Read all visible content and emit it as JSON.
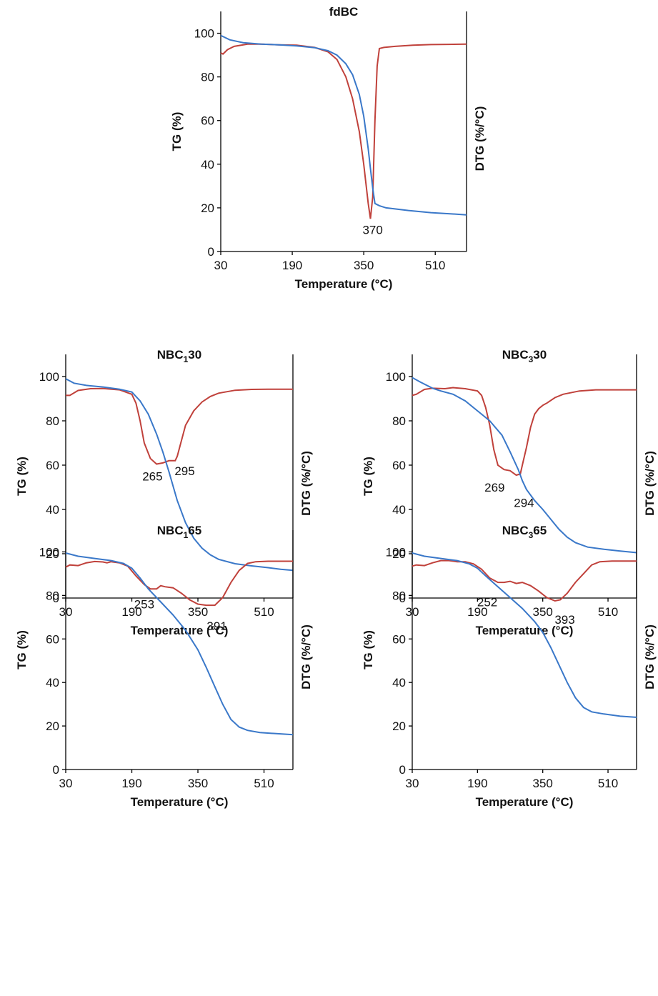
{
  "chart_data": [
    {
      "type": "line",
      "title": "fdBC",
      "title_parts": [
        "fdBC",
        "",
        ""
      ],
      "xlabel": "Temperature (°C)",
      "ylabel": "TG (%)",
      "y2label": "DTG (%/°C)",
      "xlim": [
        30,
        580
      ],
      "ylim": [
        0,
        110
      ],
      "xticks": [
        30,
        190,
        350,
        510
      ],
      "yticks": [
        0,
        20,
        40,
        60,
        80,
        100
      ],
      "series": [
        {
          "color": "#3a78c9",
          "x": [
            30,
            50,
            80,
            120,
            160,
            200,
            240,
            270,
            290,
            310,
            325,
            340,
            350,
            360,
            365,
            370,
            375,
            385,
            400,
            450,
            500,
            550,
            580
          ],
          "y": [
            99,
            97,
            95.7,
            95,
            94.7,
            94.2,
            93.4,
            92,
            90,
            86,
            81,
            72,
            62,
            47,
            38,
            29,
            22,
            21,
            20,
            18.8,
            17.8,
            17.2,
            16.8
          ]
        },
        {
          "color": "#c0413b",
          "x": [
            30,
            35,
            45,
            60,
            90,
            120,
            160,
            200,
            240,
            270,
            290,
            310,
            325,
            340,
            350,
            360,
            365,
            370,
            375,
            380,
            385,
            395,
            420,
            460,
            500,
            540,
            580
          ],
          "y": [
            91,
            90.5,
            92.5,
            94,
            95,
            95,
            94.7,
            94.5,
            93.5,
            91.5,
            88,
            80,
            70,
            55,
            40,
            22,
            15,
            25,
            60,
            85,
            93,
            93.5,
            94,
            94.5,
            94.8,
            94.9,
            95
          ]
        }
      ],
      "annotations": [
        {
          "text": "370",
          "x": 370,
          "y": 10
        }
      ]
    },
    {
      "type": "line",
      "title": "NBC130",
      "title_parts": [
        "NBC",
        "1",
        "30"
      ],
      "xlabel": "Temperature (°C)",
      "ylabel": "TG (%)",
      "y2label": "DTG (%/°C)",
      "xlim": [
        30,
        580
      ],
      "ylim": [
        0,
        110
      ],
      "xticks": [
        30,
        190,
        350,
        510
      ],
      "yticks": [
        0,
        20,
        40,
        60,
        80,
        100
      ],
      "series": [
        {
          "color": "#3a78c9",
          "x": [
            30,
            50,
            80,
            120,
            160,
            190,
            210,
            230,
            250,
            265,
            280,
            300,
            320,
            340,
            360,
            380,
            400,
            440,
            480,
            520,
            550,
            580
          ],
          "y": [
            99,
            97,
            96,
            95.3,
            94.3,
            93,
            89,
            83,
            74,
            66,
            57,
            44,
            34,
            27,
            22.5,
            19.5,
            17.5,
            15.5,
            14.5,
            13.7,
            13,
            12.5
          ]
        },
        {
          "color": "#c0413b",
          "x": [
            30,
            40,
            60,
            90,
            120,
            160,
            190,
            200,
            210,
            220,
            235,
            250,
            265,
            280,
            295,
            300,
            310,
            320,
            340,
            360,
            380,
            400,
            440,
            480,
            520,
            580
          ],
          "y": [
            91.5,
            91.5,
            93.7,
            94.5,
            94.6,
            94,
            92,
            88,
            80,
            70,
            63,
            60.5,
            61,
            62,
            62,
            64,
            71,
            78,
            84.5,
            88.5,
            91,
            92.5,
            93.8,
            94.2,
            94.3,
            94.3
          ]
        }
      ],
      "annotations": [
        {
          "text": "265",
          "x": 240,
          "y": 55
        },
        {
          "text": "295",
          "x": 318,
          "y": 57.5
        }
      ]
    },
    {
      "type": "line",
      "title": "NBC330",
      "title_parts": [
        "NBC",
        "3",
        "30"
      ],
      "xlabel": "Temperature (°C)",
      "ylabel": "TG (%)",
      "y2label": "DTG (%/°C)",
      "xlim": [
        30,
        580
      ],
      "ylim": [
        0,
        110
      ],
      "xticks": [
        30,
        190,
        350,
        510
      ],
      "yticks": [
        0,
        20,
        40,
        60,
        80,
        100
      ],
      "series": [
        {
          "color": "#3a78c9",
          "x": [
            30,
            50,
            80,
            100,
            130,
            160,
            190,
            220,
            250,
            270,
            290,
            300,
            310,
            330,
            350,
            370,
            390,
            410,
            430,
            460,
            500,
            540,
            580
          ],
          "y": [
            99.5,
            97.5,
            94.7,
            93.5,
            92,
            89,
            84.5,
            80,
            73.5,
            66,
            58,
            53,
            49,
            44,
            40,
            35.5,
            31,
            27.5,
            25,
            23,
            22,
            21.2,
            20.5
          ]
        },
        {
          "color": "#c0413b",
          "x": [
            30,
            40,
            60,
            80,
            110,
            130,
            160,
            190,
            200,
            210,
            220,
            230,
            240,
            255,
            270,
            285,
            295,
            300,
            310,
            320,
            330,
            340,
            350,
            360,
            380,
            400,
            440,
            480,
            520,
            580
          ],
          "y": [
            91.5,
            92,
            94.2,
            94.7,
            94.5,
            95,
            94.5,
            93.5,
            91.5,
            86,
            78,
            67,
            60,
            58,
            57.5,
            55.5,
            56,
            60,
            68,
            77,
            83,
            85.5,
            87,
            88,
            90.5,
            92,
            93.5,
            94,
            94,
            94
          ]
        }
      ],
      "annotations": [
        {
          "text": "269",
          "x": 232,
          "y": 50
        },
        {
          "text": "294",
          "x": 304,
          "y": 43
        }
      ]
    },
    {
      "type": "line",
      "title": "NBC165",
      "title_parts": [
        "NBC",
        "1",
        "65"
      ],
      "xlabel": "Temperature (°C)",
      "ylabel": "TG (%)",
      "y2label": "DTG (%/°C)",
      "xlim": [
        30,
        580
      ],
      "ylim": [
        0,
        110
      ],
      "xticks": [
        30,
        190,
        350,
        510
      ],
      "yticks": [
        0,
        20,
        40,
        60,
        80,
        100
      ],
      "series": [
        {
          "color": "#3a78c9",
          "x": [
            30,
            60,
            100,
            140,
            170,
            190,
            210,
            230,
            260,
            290,
            320,
            350,
            370,
            390,
            410,
            430,
            450,
            470,
            500,
            540,
            580
          ],
          "y": [
            99.5,
            98,
            97,
            96,
            94.7,
            92.5,
            88,
            83,
            77,
            71,
            64,
            55,
            47,
            38.5,
            30,
            23,
            19.5,
            18,
            17,
            16.5,
            16
          ]
        },
        {
          "color": "#c0413b",
          "x": [
            30,
            40,
            60,
            80,
            100,
            120,
            130,
            140,
            160,
            180,
            200,
            220,
            235,
            250,
            260,
            270,
            290,
            310,
            330,
            350,
            370,
            391,
            410,
            430,
            450,
            470,
            490,
            520,
            580
          ],
          "y": [
            93,
            94,
            93.7,
            95,
            95.6,
            95.4,
            95,
            95.5,
            95,
            93.5,
            89,
            85,
            83,
            83,
            84.5,
            84,
            83.5,
            81,
            78,
            76,
            75.5,
            75.5,
            79,
            86,
            91.5,
            94.7,
            95.5,
            95.7,
            95.7
          ]
        }
      ],
      "annotations": [
        {
          "text": "253",
          "x": 220,
          "y": 76
        },
        {
          "text": "391",
          "x": 396,
          "y": 66
        }
      ]
    },
    {
      "type": "line",
      "title": "NBC365",
      "title_parts": [
        "NBC",
        "3",
        "65"
      ],
      "xlabel": "Temperature (°C)",
      "ylabel": "TG (%)",
      "y2label": "DTG (%/°C)",
      "xlim": [
        30,
        580
      ],
      "ylim": [
        0,
        110
      ],
      "xticks": [
        30,
        190,
        350,
        510
      ],
      "yticks": [
        0,
        20,
        40,
        60,
        80,
        100
      ],
      "series": [
        {
          "color": "#3a78c9",
          "x": [
            30,
            60,
            100,
            140,
            170,
            190,
            210,
            240,
            270,
            300,
            330,
            350,
            370,
            390,
            410,
            430,
            450,
            470,
            500,
            540,
            580
          ],
          "y": [
            99.5,
            98,
            97,
            96,
            94.5,
            92.5,
            89,
            84,
            79,
            74,
            68,
            63,
            56,
            48,
            40,
            33,
            28.5,
            26.5,
            25.5,
            24.5,
            24
          ]
        },
        {
          "color": "#c0413b",
          "x": [
            30,
            40,
            60,
            80,
            100,
            120,
            140,
            160,
            180,
            200,
            220,
            240,
            255,
            270,
            285,
            300,
            320,
            340,
            360,
            380,
            393,
            410,
            430,
            450,
            470,
            490,
            520,
            580
          ],
          "y": [
            93.5,
            94,
            93.7,
            95,
            96,
            96,
            95.5,
            95.5,
            94.5,
            92,
            88,
            86,
            86,
            86.5,
            85.5,
            86,
            84.5,
            82,
            79,
            77.5,
            78,
            81,
            86,
            90,
            94,
            95.5,
            95.8,
            95.8
          ]
        }
      ],
      "annotations": [
        {
          "text": "252",
          "x": 214,
          "y": 77
        },
        {
          "text": "393",
          "x": 404,
          "y": 69
        }
      ]
    }
  ]
}
